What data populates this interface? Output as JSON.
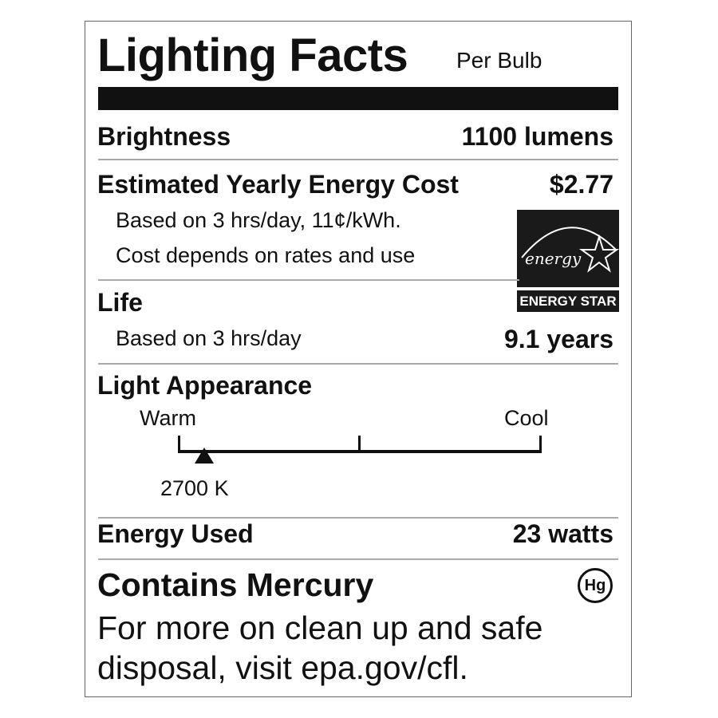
{
  "title": "Lighting Facts",
  "subtitle": "Per Bulb",
  "brightness": {
    "label": "Brightness",
    "value": "1100 lumens"
  },
  "cost": {
    "label": "Estimated Yearly Energy Cost",
    "value": "$2.77",
    "note1": "Based on 3 hrs/day, 11¢/kWh.",
    "note2": "Cost depends on rates and use"
  },
  "energy_star": {
    "logo_text": "energy",
    "label": "ENERGY STAR"
  },
  "life": {
    "label": "Life",
    "note": "Based on 3 hrs/day",
    "value": "9.1 years"
  },
  "appearance": {
    "label": "Light Appearance",
    "warm": "Warm",
    "cool": "Cool",
    "value": "2700 K",
    "scale_position_fraction": 0.07
  },
  "energy_used": {
    "label": "Energy Used",
    "value": "23 watts"
  },
  "mercury": {
    "label": "Contains Mercury",
    "icon_text": "Hg",
    "line1": "For more on clean up and safe",
    "line2": "disposal, visit epa.gov/cfl."
  }
}
